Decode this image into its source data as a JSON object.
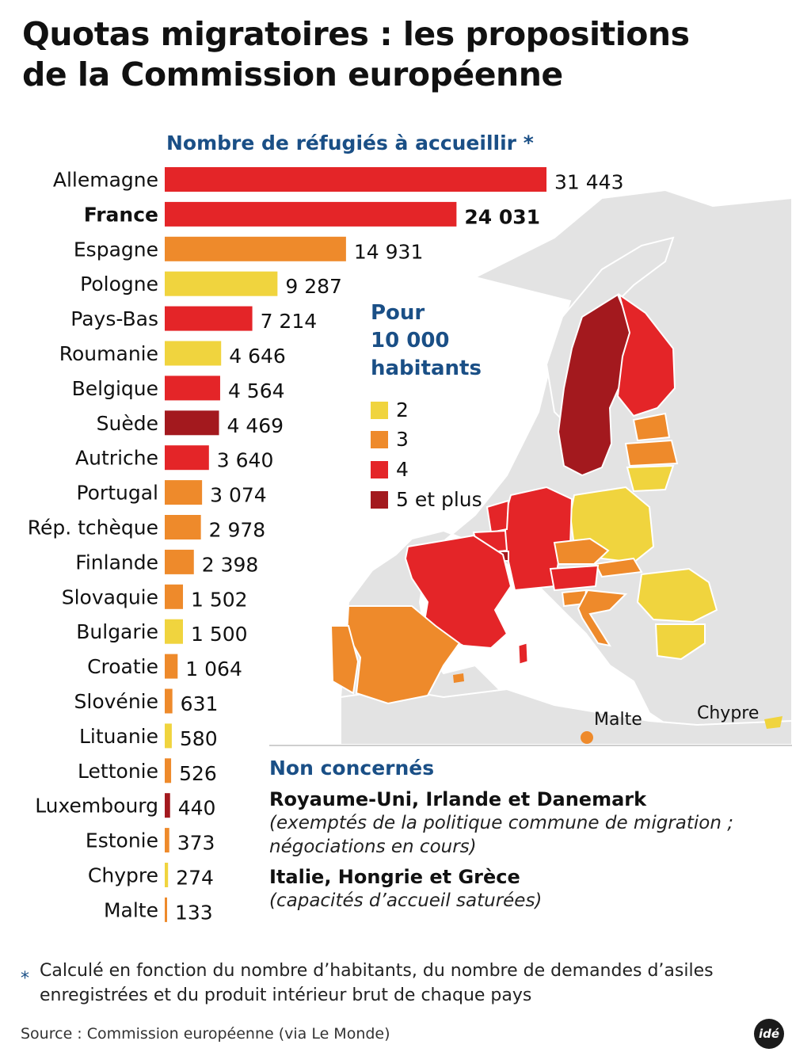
{
  "title": {
    "line1": "Quotas migratoires : les propositions",
    "line2": "de la Commission européenne"
  },
  "chart_data": {
    "type": "bar",
    "orientation": "horizontal",
    "title": "Nombre de réfugiés à accueillir *",
    "categories": [
      "Allemagne",
      "France",
      "Espagne",
      "Pologne",
      "Pays-Bas",
      "Roumanie",
      "Belgique",
      "Suède",
      "Autriche",
      "Portugal",
      "Rép. tchèque",
      "Finlande",
      "Slovaquie",
      "Bulgarie",
      "Croatie",
      "Slovénie",
      "Lituanie",
      "Lettonie",
      "Luxembourg",
      "Estonie",
      "Chypre",
      "Malte"
    ],
    "values": [
      31443,
      24031,
      14931,
      9287,
      7214,
      4646,
      4564,
      4469,
      3640,
      3074,
      2978,
      2398,
      1502,
      1500,
      1064,
      631,
      580,
      526,
      440,
      373,
      274,
      133
    ],
    "value_labels": [
      "31 443",
      "24 031",
      "14 931",
      "9 287",
      "7 214",
      "4 646",
      "4 564",
      "4 469",
      "3 640",
      "3 074",
      "2 978",
      "2 398",
      "1 502",
      "1 500",
      "1 064",
      "631",
      "580",
      "526",
      "440",
      "373",
      "274",
      "133"
    ],
    "per_10000_class": [
      "4",
      "4",
      "3",
      "2",
      "4",
      "2",
      "4",
      "5 et plus",
      "4",
      "3",
      "3",
      "3",
      "3",
      "2",
      "3",
      "3",
      "2",
      "3",
      "5 et plus",
      "3",
      "2",
      "3"
    ],
    "highlight": "France",
    "xlim": [
      0,
      31443
    ]
  },
  "legend": {
    "title_line1": "Pour",
    "title_line2": "10 000",
    "title_line3": "habitants",
    "items": [
      {
        "label": "2",
        "color": "#f0d43e"
      },
      {
        "label": "3",
        "color": "#ee8a2b"
      },
      {
        "label": "4",
        "color": "#e42528"
      },
      {
        "label": "5 et plus",
        "color": "#a3191e"
      }
    ]
  },
  "map": {
    "labels": {
      "malte": "Malte",
      "chypre": "Chypre"
    },
    "colors": {
      "land": "#e3e3e3",
      "sea": "#ffffff",
      "border": "#ffffff"
    }
  },
  "excluded": {
    "title": "Non concernés",
    "group1": "Royaume-Uni, Irlande et Danemark",
    "note1_line1": "(exemptés de la politique commune de migration ;",
    "note1_line2": "négociations en cours)",
    "group2": "Italie, Hongrie et Grèce",
    "note2": "(capacités d’accueil saturées)"
  },
  "footnote": {
    "star": "*",
    "line1": "Calculé en fonction du nombre d’habitants, du nombre de demandes d’asiles",
    "line2": "enregistrées et du produit intérieur brut de chaque pays"
  },
  "source": "Source : Commission européenne (via Le Monde)",
  "logo": "idé"
}
